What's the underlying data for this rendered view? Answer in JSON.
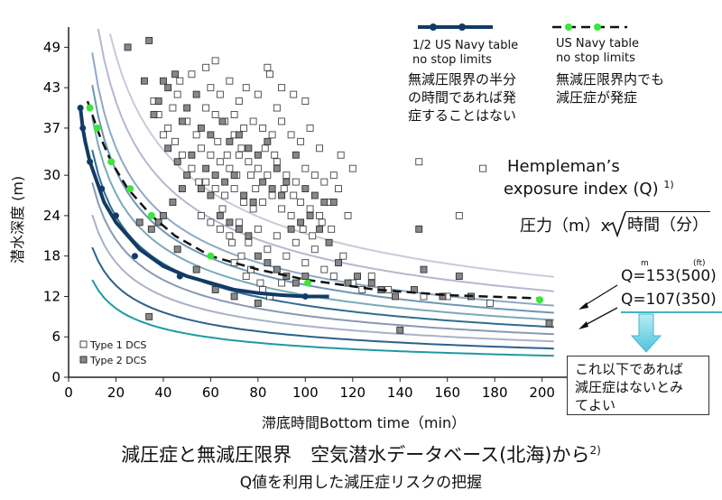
{
  "chart_data": {
    "type": "scatter",
    "title": "減圧症と無減圧限界　空気潜水データベース(北海)から",
    "title_sup": "2)",
    "subtitle": "Q値を利用した減圧症リスクの把握",
    "xlabel": "滞底時間Bottom time（min）",
    "ylabel": "潜水深度 (m)",
    "xlim": [
      0,
      215
    ],
    "ylim": [
      0,
      52
    ],
    "xticks": [
      0,
      20,
      40,
      60,
      80,
      100,
      120,
      140,
      160,
      180,
      200
    ],
    "yticks": [
      0,
      6,
      12,
      18,
      24,
      30,
      37,
      43,
      49
    ],
    "ytick_labels": [
      "0",
      "6",
      "12",
      "18",
      "24",
      "30",
      "37",
      "43",
      "49"
    ],
    "type1_dcs": {
      "label": "Type 1 DCS",
      "points": [
        [
          47,
          44
        ],
        [
          52,
          45
        ],
        [
          60,
          43
        ],
        [
          64,
          42
        ],
        [
          68,
          44
        ],
        [
          72,
          41
        ],
        [
          75,
          43
        ],
        [
          80,
          42
        ],
        [
          85,
          45
        ],
        [
          88,
          40
        ],
        [
          90,
          43
        ],
        [
          95,
          42
        ],
        [
          100,
          41
        ],
        [
          58,
          40
        ],
        [
          62,
          39
        ],
        [
          66,
          38
        ],
        [
          70,
          39
        ],
        [
          74,
          37
        ],
        [
          78,
          38
        ],
        [
          82,
          37
        ],
        [
          86,
          36
        ],
        [
          90,
          38
        ],
        [
          94,
          36
        ],
        [
          98,
          35
        ],
        [
          102,
          37
        ],
        [
          106,
          34
        ],
        [
          50,
          38
        ],
        [
          54,
          36
        ],
        [
          56,
          34
        ],
        [
          60,
          33
        ],
        [
          64,
          32
        ],
        [
          68,
          31
        ],
        [
          72,
          33
        ],
        [
          76,
          32
        ],
        [
          80,
          31
        ],
        [
          84,
          30
        ],
        [
          88,
          32
        ],
        [
          92,
          30
        ],
        [
          96,
          29
        ],
        [
          100,
          31
        ],
        [
          104,
          30
        ],
        [
          108,
          29
        ],
        [
          112,
          30
        ],
        [
          58,
          29
        ],
        [
          62,
          28
        ],
        [
          66,
          27
        ],
        [
          70,
          28
        ],
        [
          74,
          26
        ],
        [
          78,
          25
        ],
        [
          82,
          26
        ],
        [
          86,
          27
        ],
        [
          90,
          25
        ],
        [
          94,
          24
        ],
        [
          98,
          26
        ],
        [
          102,
          25
        ],
        [
          106,
          24
        ],
        [
          110,
          26
        ],
        [
          114,
          28
        ],
        [
          118,
          24
        ],
        [
          56,
          24
        ],
        [
          60,
          23
        ],
        [
          64,
          22
        ],
        [
          68,
          21
        ],
        [
          72,
          23
        ],
        [
          76,
          20
        ],
        [
          80,
          22
        ],
        [
          84,
          19
        ],
        [
          88,
          21
        ],
        [
          92,
          18
        ],
        [
          96,
          20
        ],
        [
          100,
          17
        ],
        [
          104,
          19
        ],
        [
          108,
          16
        ],
        [
          112,
          15
        ],
        [
          116,
          18
        ],
        [
          120,
          14
        ],
        [
          124,
          13
        ],
        [
          128,
          15
        ],
        [
          135,
          13
        ],
        [
          150,
          12
        ],
        [
          160,
          12
        ],
        [
          70,
          17
        ],
        [
          75,
          15
        ],
        [
          82,
          13
        ],
        [
          90,
          14
        ],
        [
          45,
          35
        ],
        [
          48,
          33
        ],
        [
          52,
          31
        ],
        [
          55,
          29
        ],
        [
          42,
          37
        ],
        [
          40,
          36
        ],
        [
          38,
          39
        ],
        [
          36,
          41
        ],
        [
          44,
          40
        ],
        [
          46,
          42
        ],
        [
          115,
          33
        ],
        [
          120,
          31
        ],
        [
          148,
          32
        ],
        [
          175,
          31
        ],
        [
          165,
          24
        ],
        [
          178,
          11
        ],
        [
          58,
          46
        ],
        [
          62,
          47
        ],
        [
          84,
          46
        ],
        [
          70,
          36
        ],
        [
          73,
          34
        ],
        [
          77,
          30
        ],
        [
          79,
          28
        ],
        [
          83,
          34
        ],
        [
          87,
          33
        ],
        [
          91,
          28
        ],
        [
          95,
          27
        ],
        [
          99,
          22
        ],
        [
          103,
          21
        ],
        [
          107,
          23
        ],
        [
          111,
          22
        ],
        [
          63,
          35
        ],
        [
          67,
          33
        ],
        [
          71,
          30
        ],
        [
          65,
          25
        ],
        [
          69,
          20
        ],
        [
          73,
          18
        ],
        [
          77,
          16
        ],
        [
          81,
          14
        ],
        [
          85,
          12
        ]
      ],
      "color": "#ffffff"
    },
    "type2_dcs": {
      "label": "Type 2 DCS",
      "points": [
        [
          25,
          49
        ],
        [
          34,
          50
        ],
        [
          32,
          44
        ],
        [
          40,
          44
        ],
        [
          45,
          45
        ],
        [
          38,
          41
        ],
        [
          42,
          43
        ],
        [
          36,
          39
        ],
        [
          48,
          38
        ],
        [
          50,
          40
        ],
        [
          54,
          42
        ],
        [
          56,
          37
        ],
        [
          60,
          36
        ],
        [
          65,
          38
        ],
        [
          68,
          35
        ],
        [
          72,
          36
        ],
        [
          76,
          34
        ],
        [
          80,
          33
        ],
        [
          84,
          35
        ],
        [
          88,
          31
        ],
        [
          92,
          29
        ],
        [
          96,
          33
        ],
        [
          100,
          28
        ],
        [
          104,
          27
        ],
        [
          108,
          26
        ],
        [
          112,
          26
        ],
        [
          58,
          31
        ],
        [
          62,
          30
        ],
        [
          66,
          29
        ],
        [
          70,
          30
        ],
        [
          74,
          27
        ],
        [
          78,
          26
        ],
        [
          82,
          29
        ],
        [
          86,
          28
        ],
        [
          90,
          27
        ],
        [
          94,
          22
        ],
        [
          98,
          23
        ],
        [
          102,
          24
        ],
        [
          106,
          22
        ],
        [
          110,
          20
        ],
        [
          114,
          17
        ],
        [
          118,
          14
        ],
        [
          122,
          15
        ],
        [
          128,
          14
        ],
        [
          132,
          13
        ],
        [
          138,
          12
        ],
        [
          146,
          13
        ],
        [
          150,
          16
        ],
        [
          158,
          12
        ],
        [
          165,
          15
        ],
        [
          170,
          12
        ],
        [
          52,
          33
        ],
        [
          56,
          28
        ],
        [
          60,
          27
        ],
        [
          64,
          24
        ],
        [
          68,
          23
        ],
        [
          72,
          22
        ],
        [
          76,
          21
        ],
        [
          80,
          18
        ],
        [
          84,
          17
        ],
        [
          88,
          16
        ],
        [
          92,
          15
        ],
        [
          96,
          14
        ],
        [
          100,
          15
        ],
        [
          42,
          34
        ],
        [
          46,
          32
        ],
        [
          50,
          30
        ],
        [
          48,
          28
        ],
        [
          44,
          26
        ],
        [
          40,
          24
        ],
        [
          38,
          23
        ],
        [
          30,
          23
        ],
        [
          35,
          22
        ],
        [
          46,
          19
        ],
        [
          54,
          16
        ],
        [
          62,
          13
        ],
        [
          70,
          12
        ],
        [
          80,
          11
        ],
        [
          34,
          9
        ],
        [
          140,
          7
        ],
        [
          148,
          22
        ],
        [
          203,
          8
        ]
      ],
      "color": "#888888"
    },
    "series": [
      {
        "name": "1/2 US Navy table no stop limits",
        "color": "#133a66",
        "x": [
          5,
          6,
          7,
          9,
          12,
          15,
          20,
          25,
          30,
          40,
          50,
          60,
          70,
          80,
          90,
          100,
          110
        ],
        "y": [
          40,
          37,
          35,
          32,
          29,
          26,
          23,
          21,
          19,
          16.5,
          15,
          14,
          13,
          12.5,
          12.2,
          12,
          12
        ]
      },
      {
        "name": "US Navy table no stop limits",
        "color": "#111111",
        "x": [
          8,
          10,
          13,
          18,
          25,
          35,
          45,
          60,
          80,
          100,
          130,
          160,
          200
        ],
        "y": [
          41,
          39,
          36,
          32,
          28,
          24,
          21,
          18,
          16,
          14.5,
          13,
          12.2,
          11.7
        ]
      }
    ],
    "series_markers": [
      {
        "x": [
          5,
          6,
          9,
          14,
          20,
          28,
          47,
          100,
          170
        ],
        "y": [
          40,
          37,
          32,
          28,
          24,
          18,
          15,
          12,
          12
        ],
        "color": "#133a66"
      },
      {
        "x": [
          9,
          12,
          18,
          26,
          35,
          60,
          101,
          199
        ],
        "y": [
          40,
          37,
          32,
          28,
          24,
          18,
          14,
          11.5
        ],
        "color": "#39e639"
      }
    ],
    "q_curves": [
      {
        "q": 700,
        "color": "#c8cbd8"
      },
      {
        "q": 600,
        "color": "#b4b8cf"
      },
      {
        "q": 500,
        "color": "#8fa9c4"
      },
      {
        "q": 450,
        "color": "#6d97b3"
      },
      {
        "q": 400,
        "color": "#7aaab8"
      },
      {
        "q": 350,
        "color": "#2f6d8f"
      },
      {
        "q": 300,
        "color": "#8a98b4"
      },
      {
        "q": 250,
        "color": "#aab0c8"
      },
      {
        "q": 200,
        "color": "#2a628a"
      },
      {
        "q": 150,
        "color": "#1f9aa0"
      }
    ],
    "legend": {
      "half_navy": {
        "line1": "1/2 US Navy table",
        "line2": "no stop limits",
        "jp": [
          "無減圧限界の半分",
          "の時間であれば発",
          "症することはない"
        ]
      },
      "navy": {
        "line1": "US Navy table",
        "line2": "no stop limits",
        "jp": [
          "無減圧限界内でも",
          "減圧症が発症"
        ]
      },
      "type1": "Type 1 DCS",
      "type2": "Type 2 DCS"
    },
    "annotations": {
      "hempleman_line1": "Hempleman’s",
      "hempleman_line2": "exposure index (Q)",
      "hempleman_sup": "1)",
      "formula_left": "圧力（m）x",
      "formula_root": "時間（分）",
      "unit_m": "m",
      "unit_ft": "(ft)",
      "q_high": "Q=153(500)",
      "q_low": "Q=107(350)",
      "box_text": [
        "これ以下であれば",
        "減圧症はないとみ",
        "てよい"
      ]
    }
  }
}
